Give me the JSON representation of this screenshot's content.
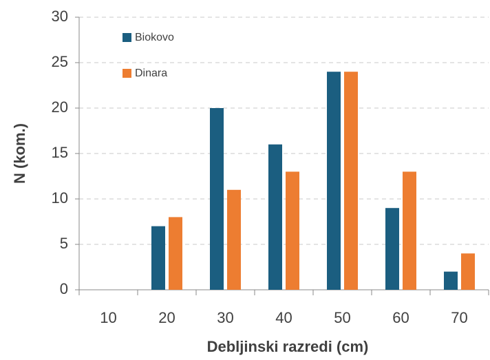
{
  "chart_data": {
    "type": "bar",
    "x_label": "Debljinski razredi (cm)",
    "y_label": "N (kom.)",
    "categories": [
      "10",
      "20",
      "30",
      "40",
      "50",
      "60",
      "70"
    ],
    "series": [
      {
        "name": "Biokovo",
        "color": "#1b5e80",
        "values": [
          0,
          7,
          20,
          16,
          24,
          9,
          2
        ]
      },
      {
        "name": "Dinara",
        "color": "#ed7d31",
        "values": [
          0,
          8,
          11,
          13,
          24,
          13,
          4
        ]
      }
    ],
    "ylim": [
      0,
      30
    ],
    "yticks": [
      0,
      5,
      10,
      15,
      20,
      25,
      30
    ],
    "grid": true,
    "legend": "top-left"
  }
}
